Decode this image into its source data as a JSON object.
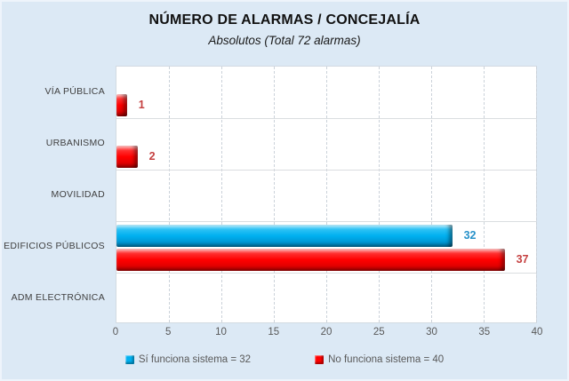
{
  "chart_data": {
    "type": "bar",
    "orientation": "horizontal",
    "title": "NÚMERO DE ALARMAS / CONCEJALÍA",
    "subtitle": "Absolutos (Total 72 alarmas)",
    "categories": [
      "VÍA PÚBLICA",
      "URBANISMO",
      "MOVILIDAD",
      "EDIFICIOS PÚBLICOS",
      "ADM ELECTRÓNICA"
    ],
    "series": [
      {
        "name": "Sí funciona sistema = 32",
        "color": "#00B0F0",
        "label_color": "#2791C9",
        "values": [
          0,
          0,
          0,
          32,
          0
        ]
      },
      {
        "name": "No funciona sistema = 40",
        "color": "#FF0000",
        "label_color": "#C54040",
        "values": [
          1,
          2,
          0,
          37,
          0
        ]
      }
    ],
    "xlim": [
      0,
      40
    ],
    "xticks": [
      0,
      5,
      10,
      15,
      20,
      25,
      30,
      35,
      40
    ],
    "grid": "vertical-dashed",
    "legend_position": "bottom",
    "data_labels": true
  },
  "colors": {
    "background": "#DCE9F5",
    "plot_background": "#FFFFFF",
    "gridline": "#CBD2DA",
    "band_line": "#DADDE0",
    "title_text": "#111111",
    "category_text": "#3F3F3F",
    "axis_text": "#595959",
    "legend_text": "#595959"
  }
}
